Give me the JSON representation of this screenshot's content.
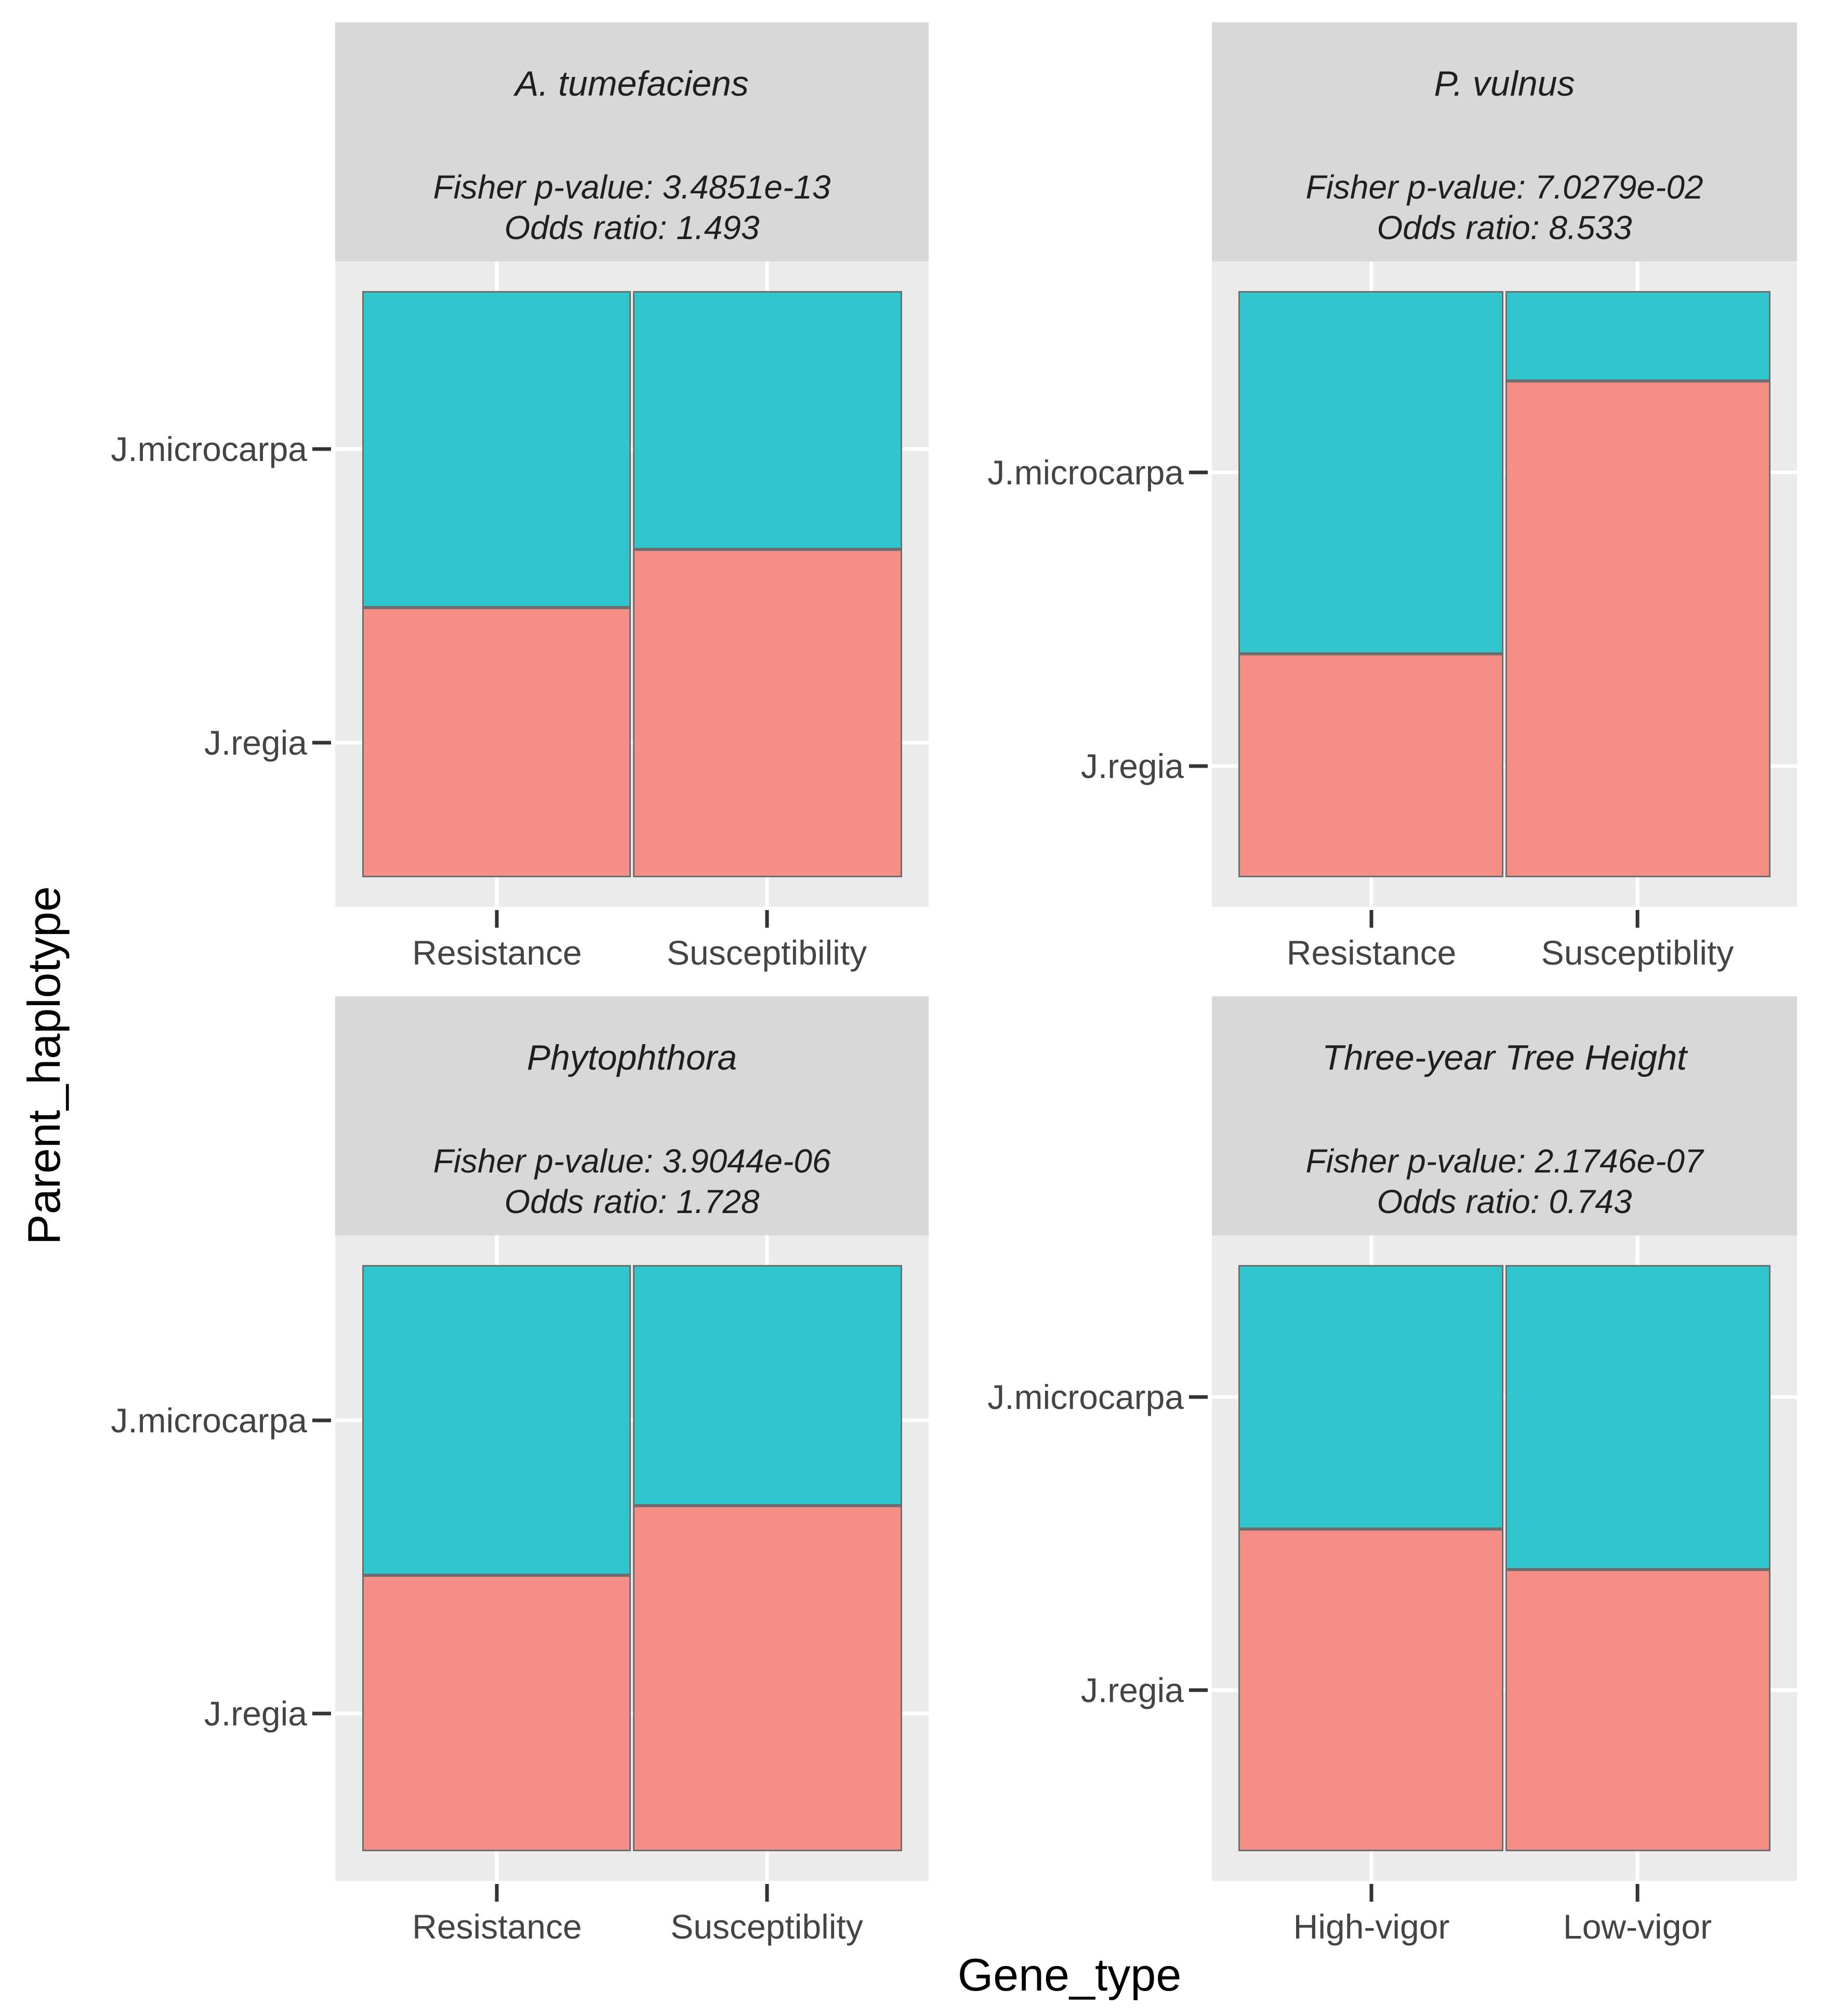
{
  "figure": {
    "x_axis_title": "Gene_type",
    "y_axis_title": "Parent_haplotype"
  },
  "colors": {
    "teal_jmicrocarpa": "#31c5cd",
    "salmon_jregia": "#f58e86",
    "panel_background": "#ebebeb",
    "strip_background": "#d8d8d8",
    "gridline": "#ffffff",
    "rect_border": "#6e6e6e",
    "tick_text": "#444444",
    "axis_title_text": "#000000"
  },
  "chart_data": [
    {
      "type": "mosaic",
      "title": "A. tumefaciens",
      "subtitle_lines": [
        "Fisher p-value: 3.4851e-13",
        "Odds ratio: 1.493"
      ],
      "fisher_p_value": "3.4851e-13",
      "odds_ratio": 1.493,
      "xlabel_categories": [
        "Resistance",
        "Susceptibility"
      ],
      "ylabel_categories": [
        "J.microcarpa",
        "J.regia"
      ],
      "series": [
        {
          "name": "J.microcarpa",
          "values": [
            0.54,
            0.44
          ]
        },
        {
          "name": "J.regia",
          "values": [
            0.46,
            0.56
          ]
        }
      ]
    },
    {
      "type": "mosaic",
      "title": "P. vulnus",
      "subtitle_lines": [
        "Fisher p-value: 7.0279e-02",
        "Odds ratio: 8.533"
      ],
      "fisher_p_value": "7.0279e-02",
      "odds_ratio": 8.533,
      "xlabel_categories": [
        "Resistance",
        "Susceptiblity"
      ],
      "ylabel_categories": [
        "J.microcarpa",
        "J.regia"
      ],
      "series": [
        {
          "name": "J.microcarpa",
          "values": [
            0.62,
            0.15
          ]
        },
        {
          "name": "J.regia",
          "values": [
            0.38,
            0.85
          ]
        }
      ]
    },
    {
      "type": "mosaic",
      "title": "Phytophthora",
      "subtitle_lines": [
        "Fisher p-value: 3.9044e-06",
        "Odds ratio: 1.728"
      ],
      "fisher_p_value": "3.9044e-06",
      "odds_ratio": 1.728,
      "xlabel_categories": [
        "Resistance",
        "Susceptiblity"
      ],
      "ylabel_categories": [
        "J.microcarpa",
        "J.regia"
      ],
      "series": [
        {
          "name": "J.microcarpa",
          "values": [
            0.53,
            0.41
          ]
        },
        {
          "name": "J.regia",
          "values": [
            0.47,
            0.59
          ]
        }
      ]
    },
    {
      "type": "mosaic",
      "title": "Three-year Tree Height",
      "subtitle_lines": [
        "Fisher p-value: 2.1746e-07",
        "Odds ratio: 0.743"
      ],
      "fisher_p_value": "2.1746e-07",
      "odds_ratio": 0.743,
      "xlabel_categories": [
        "High-vigor",
        "Low-vigor"
      ],
      "ylabel_categories": [
        "J.microcarpa",
        "J.regia"
      ],
      "series": [
        {
          "name": "J.microcarpa",
          "values": [
            0.45,
            0.52
          ]
        },
        {
          "name": "J.regia",
          "values": [
            0.55,
            0.48
          ]
        }
      ]
    }
  ]
}
